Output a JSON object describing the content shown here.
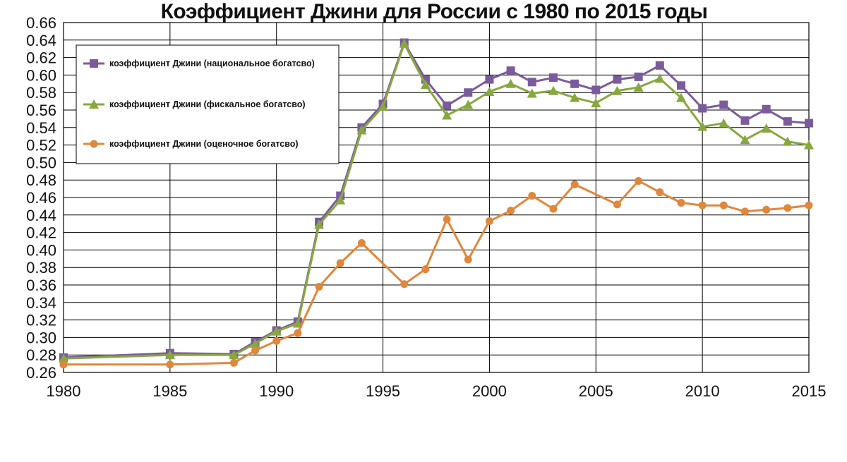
{
  "chart_data": {
    "type": "line",
    "title": "Коэффициент Джини для России  с 1980 по 2015 годы",
    "xlabel": "",
    "ylabel": "",
    "xlim": [
      1980,
      2015
    ],
    "ylim": [
      0.26,
      0.66
    ],
    "x_ticks": [
      "1980",
      "1985",
      "1990",
      "1995",
      "2000",
      "2005",
      "2010",
      "2015"
    ],
    "y_ticks": [
      "0.26",
      "0.28",
      "0.30",
      "0.32",
      "0.34",
      "0.36",
      "0.38",
      "0.40",
      "0.42",
      "0.44",
      "0.46",
      "0.48",
      "0.50",
      "0.52",
      "0.54",
      "0.56",
      "0.58",
      "0.60",
      "0.62",
      "0.64",
      "0.66"
    ],
    "grid": true,
    "legend_position": "top-left",
    "series": [
      {
        "name": "коэффициент Джини  (национальное богатсво)",
        "color": "#7b5b9b",
        "marker": "square",
        "x": [
          1980,
          1985,
          1988,
          1989,
          1990,
          1991,
          1992,
          1993,
          1994,
          1995,
          1996,
          1997,
          1998,
          1999,
          2000,
          2001,
          2002,
          2003,
          2004,
          2005,
          2006,
          2007,
          2008,
          2009,
          2010,
          2011,
          2012,
          2013,
          2014,
          2015
        ],
        "y": [
          0.277,
          0.282,
          0.281,
          0.295,
          0.308,
          0.318,
          0.432,
          0.462,
          0.54,
          0.567,
          0.637,
          0.595,
          0.565,
          0.58,
          0.595,
          0.605,
          0.592,
          0.597,
          0.59,
          0.583,
          0.595,
          0.598,
          0.611,
          0.588,
          0.562,
          0.566,
          0.548,
          0.561,
          0.547,
          0.545
        ]
      },
      {
        "name": "коэффициент Джини (фискальное богатсво)",
        "color": "#86a83f",
        "marker": "triangle",
        "x": [
          1980,
          1985,
          1988,
          1989,
          1990,
          1991,
          1992,
          1993,
          1994,
          1995,
          1996,
          1997,
          1998,
          1999,
          2000,
          2001,
          2002,
          2003,
          2004,
          2005,
          2006,
          2007,
          2008,
          2009,
          2010,
          2011,
          2012,
          2013,
          2014,
          2015
        ],
        "y": [
          0.276,
          0.28,
          0.28,
          0.293,
          0.307,
          0.316,
          0.429,
          0.457,
          0.537,
          0.564,
          0.636,
          0.589,
          0.554,
          0.566,
          0.581,
          0.59,
          0.579,
          0.582,
          0.574,
          0.568,
          0.582,
          0.586,
          0.596,
          0.574,
          0.541,
          0.545,
          0.526,
          0.539,
          0.524,
          0.52
        ]
      },
      {
        "name": "коэффициент Джини (оценочное богатсво)",
        "color": "#e0873c",
        "marker": "circle",
        "x": [
          1980,
          1985,
          1988,
          1989,
          1990,
          1991,
          1992,
          1993,
          1994,
          1996,
          1997,
          1998,
          1999,
          2000,
          2001,
          2002,
          2003,
          2004,
          2006,
          2007,
          2008,
          2009,
          2010,
          2011,
          2012,
          2013,
          2014,
          2015
        ],
        "y": [
          0.269,
          0.269,
          0.271,
          0.285,
          0.296,
          0.305,
          0.358,
          0.385,
          0.408,
          0.361,
          0.378,
          0.435,
          0.389,
          0.433,
          0.445,
          0.462,
          0.447,
          0.475,
          0.452,
          0.479,
          0.466,
          0.454,
          0.451,
          0.451,
          0.444,
          0.446,
          0.448,
          0.451
        ]
      }
    ]
  }
}
